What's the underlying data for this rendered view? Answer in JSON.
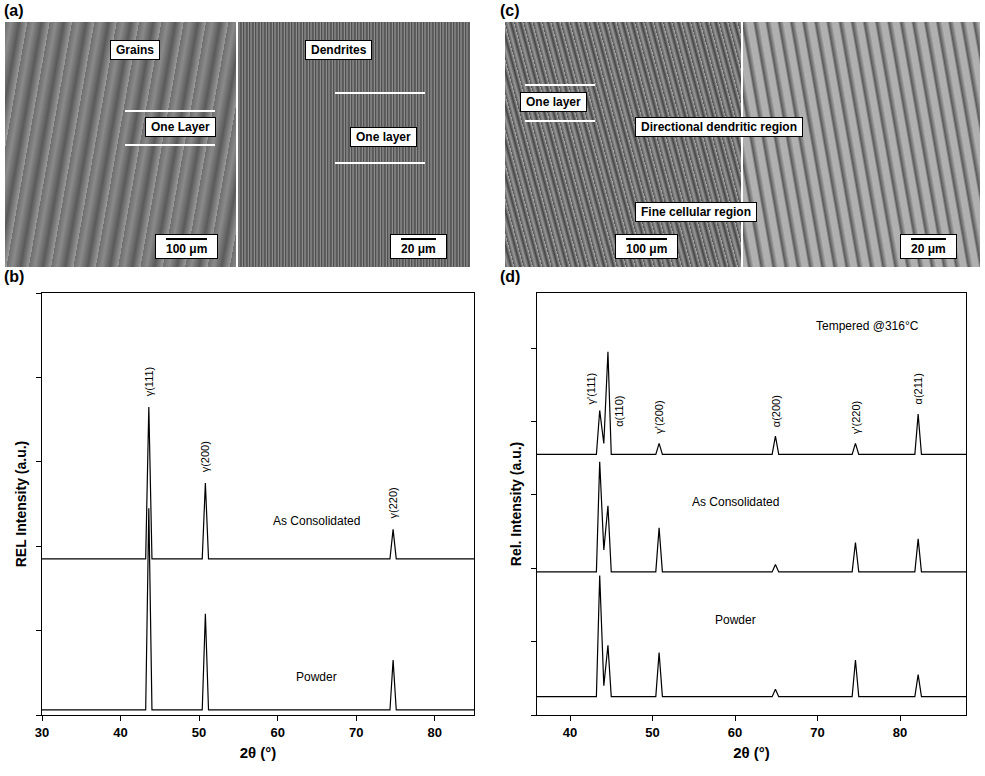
{
  "micrographs": [
    {
      "letter": "(a)",
      "subpanels": [
        {
          "labels": [
            "Grains",
            "One Layer"
          ],
          "scale": "100 μm"
        },
        {
          "labels": [
            "Dendrites",
            "One layer"
          ],
          "scale": "20 μm"
        }
      ]
    },
    {
      "letter": "(c)",
      "subpanels": [
        {
          "labels": [
            "One layer",
            "Directional dendritic region",
            "Fine cellular region"
          ],
          "scale": "100 μm"
        },
        {
          "labels": [],
          "scale": "20 μm"
        }
      ]
    }
  ],
  "chart_data": [
    {
      "type": "line",
      "letter": "(b)",
      "x_label": "2θ (°)",
      "y_label": "REL Intensity (a.u.)",
      "x": [
        30,
        43.2,
        43.6,
        44.0,
        50.4,
        50.8,
        51.2,
        74.3,
        74.7,
        75.1,
        85
      ],
      "series": [
        {
          "color": "#000000",
          "values": [
            37,
            37,
            73,
            37,
            37,
            55,
            37,
            37,
            44,
            37,
            37
          ]
        },
        {
          "color": "#000000",
          "values": [
            1.2,
            1.2,
            49,
            1.2,
            1.2,
            24,
            1.2,
            1.2,
            13,
            1.2,
            1.2
          ]
        }
      ],
      "xlim": [
        30,
        85
      ],
      "xticks": [
        30,
        40,
        50,
        60,
        70,
        80
      ],
      "ylim": [
        0,
        100
      ],
      "yticks": [
        0,
        20,
        40,
        60,
        80,
        100
      ],
      "tick_labels": "x",
      "grid": false,
      "annotations": [
        {
          "text": "As Consolidated",
          "x": 65,
          "y": 46
        },
        {
          "text": "Powder",
          "x": 65,
          "y": 9
        }
      ],
      "peak_labels": [
        {
          "text": "γ(111)",
          "x": 43.6,
          "y": 75
        },
        {
          "text": "γ(200)",
          "x": 50.8,
          "y": 57
        },
        {
          "text": "γ(220)",
          "x": 74.7,
          "y": 46
        }
      ]
    },
    {
      "type": "line",
      "letter": "(d)",
      "x_label": "2θ (°)",
      "y_label": "Rel. Intensity (a.u.)",
      "x": [
        36,
        43.2,
        43.6,
        44.1,
        44.6,
        45.0,
        50.4,
        50.8,
        51.2,
        64.5,
        64.9,
        65.3,
        74.2,
        74.6,
        75.0,
        81.8,
        82.2,
        82.6,
        88
      ],
      "series": [
        {
          "color": "#000000",
          "values": [
            71,
            71,
            83,
            74,
            99,
            71,
            71,
            74,
            71,
            71,
            76,
            71,
            71,
            74,
            71,
            71,
            82,
            71,
            71
          ]
        },
        {
          "color": "#000000",
          "values": [
            39,
            39,
            69,
            45,
            57,
            39,
            39,
            51,
            39,
            39,
            41,
            39,
            39,
            47,
            39,
            39,
            48,
            39,
            39
          ]
        },
        {
          "color": "#000000",
          "values": [
            5,
            5,
            38,
            8,
            19,
            5,
            5,
            17,
            5,
            5,
            7,
            5,
            5,
            15,
            5,
            5,
            11,
            5,
            5
          ]
        }
      ],
      "xlim": [
        36,
        88
      ],
      "xticks": [
        40,
        50,
        60,
        70,
        80
      ],
      "ylim": [
        0,
        115
      ],
      "yticks": [
        0,
        20,
        40,
        60,
        80,
        100
      ],
      "tick_labels": "x",
      "grid": false,
      "annotations": [
        {
          "text": "Tempered @316°C",
          "x": 76,
          "y": 106
        },
        {
          "text": "As Consolidated",
          "x": 60,
          "y": 58
        },
        {
          "text": "Powder",
          "x": 60,
          "y": 26
        }
      ],
      "peak_labels": [
        {
          "text": "γ'(111)",
          "x": 42.5,
          "y": 84
        },
        {
          "text": "α(110)",
          "x": 46.0,
          "y": 78
        },
        {
          "text": "γ'(200)",
          "x": 50.8,
          "y": 76
        },
        {
          "text": "α(200)",
          "x": 64.9,
          "y": 78
        },
        {
          "text": "γ'(220)",
          "x": 74.6,
          "y": 76
        },
        {
          "text": "α(211)",
          "x": 82.2,
          "y": 84
        }
      ]
    }
  ]
}
